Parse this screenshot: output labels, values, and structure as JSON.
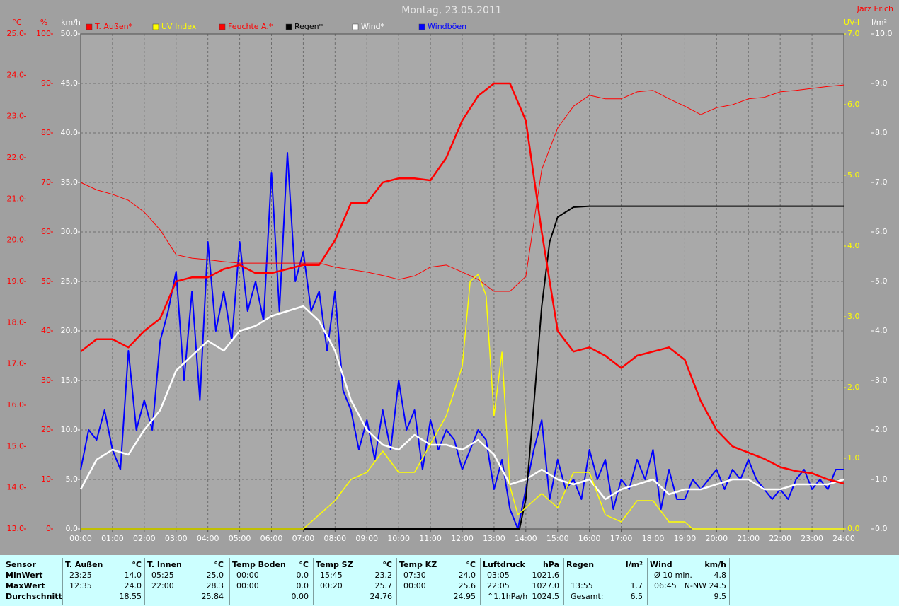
{
  "chart_data": {
    "type": "line",
    "title": "Montag, 23.05.2011",
    "author": "Jarz Erich",
    "grid": true,
    "grid_axis": "kmh",
    "legend": "top",
    "xlim": [
      0,
      24
    ],
    "xticks": [
      {
        "value": 0,
        "label": "00:00"
      },
      {
        "value": 1,
        "label": "01:00"
      },
      {
        "value": 2,
        "label": "02:00"
      },
      {
        "value": 3,
        "label": "03:00"
      },
      {
        "value": 4,
        "label": "04:00"
      },
      {
        "value": 5,
        "label": "05:00"
      },
      {
        "value": 6,
        "label": "06:00"
      },
      {
        "value": 7,
        "label": "07:00"
      },
      {
        "value": 8,
        "label": "08:00"
      },
      {
        "value": 9,
        "label": "09:00"
      },
      {
        "value": 10,
        "label": "10:00"
      },
      {
        "value": 11,
        "label": "11:00"
      },
      {
        "value": 12,
        "label": "12:00"
      },
      {
        "value": 13,
        "label": "13:00"
      },
      {
        "value": 14,
        "label": "14:00"
      },
      {
        "value": 15,
        "label": "15:00"
      },
      {
        "value": 16,
        "label": "16:00"
      },
      {
        "value": 17,
        "label": "17:00"
      },
      {
        "value": 18,
        "label": "18:00"
      },
      {
        "value": 19,
        "label": "19:00"
      },
      {
        "value": 20,
        "label": "20:00"
      },
      {
        "value": 21,
        "label": "21:00"
      },
      {
        "value": 22,
        "label": "22:00"
      },
      {
        "value": 23,
        "label": "23:00"
      },
      {
        "value": 24,
        "label": "24:00"
      }
    ],
    "axes": [
      {
        "id": "temp",
        "label": "°C",
        "side": "left",
        "color": "#ff0000",
        "lim": [
          13,
          25
        ],
        "ticks": [
          {
            "value": 13,
            "label": "13.0"
          },
          {
            "value": 14,
            "label": "14.0"
          },
          {
            "value": 15,
            "label": "15.0"
          },
          {
            "value": 16,
            "label": "16.0"
          },
          {
            "value": 17,
            "label": "17.0"
          },
          {
            "value": 18,
            "label": "18.0"
          },
          {
            "value": 19,
            "label": "19.0"
          },
          {
            "value": 20,
            "label": "20.0"
          },
          {
            "value": 21,
            "label": "21.0"
          },
          {
            "value": 22,
            "label": "22.0"
          },
          {
            "value": 23,
            "label": "23.0"
          },
          {
            "value": 24,
            "label": "24.0"
          },
          {
            "value": 25,
            "label": "25.0"
          }
        ]
      },
      {
        "id": "pct",
        "label": "%",
        "side": "left",
        "color": "#ff0000",
        "lim": [
          0,
          100
        ],
        "ticks": [
          0,
          10,
          20,
          30,
          40,
          50,
          60,
          70,
          80,
          90,
          100
        ]
      },
      {
        "id": "kmh",
        "label": "km/h",
        "side": "left",
        "color": "#ffffff",
        "lim": [
          0,
          50
        ],
        "ticks": [
          {
            "value": 0,
            "label": "0.0"
          },
          {
            "value": 5,
            "label": "5.0"
          },
          {
            "value": 10,
            "label": "10.0"
          },
          {
            "value": 15,
            "label": "15.0"
          },
          {
            "value": 20,
            "label": "20.0"
          },
          {
            "value": 25,
            "label": "25.0"
          },
          {
            "value": 30,
            "label": "30.0"
          },
          {
            "value": 35,
            "label": "35.0"
          },
          {
            "value": 40,
            "label": "40.0"
          },
          {
            "value": 45,
            "label": "45.0"
          },
          {
            "value": 50,
            "label": "50.0"
          }
        ]
      },
      {
        "id": "uv",
        "label": "UV-I",
        "side": "right",
        "color": "#ffff00",
        "lim": [
          0,
          7
        ],
        "ticks": [
          {
            "value": 0,
            "label": "0.0"
          },
          {
            "value": 1,
            "label": "1.0"
          },
          {
            "value": 2,
            "label": "2.0"
          },
          {
            "value": 3,
            "label": "3.0"
          },
          {
            "value": 4,
            "label": "4.0"
          },
          {
            "value": 5,
            "label": "5.0"
          },
          {
            "value": 6,
            "label": "6.0"
          },
          {
            "value": 7,
            "label": "7.0"
          }
        ]
      },
      {
        "id": "rain",
        "label": "l/m²",
        "side": "right",
        "color": "#ffffff",
        "lim": [
          0,
          10
        ],
        "ticks": [
          {
            "value": 0,
            "label": "0.0"
          },
          {
            "value": 1,
            "label": "1.0"
          },
          {
            "value": 2,
            "label": "2.0"
          },
          {
            "value": 3,
            "label": "3.0"
          },
          {
            "value": 4,
            "label": "4.0"
          },
          {
            "value": 5,
            "label": "5.0"
          },
          {
            "value": 6,
            "label": "6.0"
          },
          {
            "value": 7,
            "label": "7.0"
          },
          {
            "value": 8,
            "label": "8.0"
          },
          {
            "value": 9,
            "label": "9.0"
          },
          {
            "value": 10,
            "label": "10.0"
          }
        ]
      }
    ],
    "series": [
      {
        "name": "T. Außen*",
        "color": "#ff0000",
        "axis": "temp",
        "line_width": 2.5,
        "x": [
          0,
          0.5,
          1,
          1.5,
          2,
          2.5,
          3,
          3.5,
          4,
          4.5,
          5,
          5.5,
          6,
          6.5,
          7,
          7.5,
          8,
          8.5,
          9,
          9.5,
          10,
          10.5,
          11,
          11.5,
          12,
          12.5,
          13,
          13.5,
          14,
          14.5,
          15,
          15.5,
          16,
          16.5,
          17,
          17.5,
          18,
          18.5,
          19,
          19.5,
          20,
          20.5,
          21,
          21.5,
          22,
          22.5,
          23,
          23.5,
          24
        ],
        "values": [
          17.3,
          17.6,
          17.6,
          17.4,
          17.8,
          18.1,
          19.0,
          19.1,
          19.1,
          19.3,
          19.4,
          19.2,
          19.2,
          19.3,
          19.4,
          19.4,
          20.0,
          20.9,
          20.9,
          21.4,
          21.5,
          21.5,
          21.45,
          22.0,
          22.9,
          23.5,
          23.8,
          23.8,
          22.9,
          20.2,
          17.8,
          17.3,
          17.4,
          17.2,
          16.9,
          17.2,
          17.3,
          17.4,
          17.1,
          16.1,
          15.4,
          15.0,
          14.85,
          14.7,
          14.5,
          14.4,
          14.35,
          14.2,
          14.1
        ]
      },
      {
        "name": "UV Index",
        "color": "#ffff00",
        "axis": "uv",
        "line_width": 1.5,
        "x": [
          0,
          7,
          7.25,
          8,
          8.5,
          9,
          9.5,
          10,
          10.5,
          11,
          11.5,
          12,
          12.25,
          12.5,
          12.75,
          13,
          13.25,
          13.5,
          13.75,
          14,
          14.5,
          15,
          15.5,
          16,
          16.5,
          17,
          17.5,
          18,
          18.5,
          19,
          19.25,
          24
        ],
        "values": [
          0,
          0,
          0.1,
          0.4,
          0.7,
          0.8,
          1.1,
          0.8,
          0.8,
          1.2,
          1.6,
          2.3,
          3.5,
          3.6,
          3.3,
          1.6,
          2.5,
          0.6,
          0.2,
          0.3,
          0.5,
          0.3,
          0.8,
          0.8,
          0.2,
          0.1,
          0.4,
          0.4,
          0.1,
          0.1,
          0,
          0
        ]
      },
      {
        "name": "Feuchte A.*",
        "color": "#ff0000",
        "axis": "pct",
        "line_width": 1,
        "x": [
          0,
          0.5,
          1,
          1.5,
          2,
          2.5,
          3,
          3.5,
          4,
          4.5,
          5,
          5.5,
          6,
          6.5,
          7,
          7.5,
          8,
          8.5,
          9,
          9.5,
          10,
          10.5,
          11,
          11.5,
          12,
          12.5,
          13,
          13.5,
          14,
          14.5,
          15,
          15.5,
          16,
          16.5,
          17,
          17.5,
          18,
          18.5,
          19,
          19.5,
          20,
          20.5,
          21,
          21.5,
          22,
          22.5,
          23,
          23.5,
          24
        ],
        "values": [
          70,
          68.5,
          67.6,
          66.4,
          64,
          60.4,
          55.4,
          54.7,
          54.4,
          54,
          53.7,
          53.7,
          53.7,
          53.7,
          53.7,
          53.7,
          52.9,
          52.4,
          51.9,
          51.2,
          50.4,
          51.1,
          52.9,
          53.3,
          51.9,
          50.4,
          48,
          48,
          51,
          72.6,
          81,
          85.4,
          87.6,
          86.9,
          86.9,
          88.3,
          88.6,
          86.9,
          85.4,
          83.7,
          85.1,
          85.7,
          86.9,
          87.2,
          88.3,
          88.6,
          89,
          89.4,
          89.7
        ]
      },
      {
        "name": "Regen*",
        "color": "#000000",
        "axis": "rain",
        "line_width": 2,
        "x": [
          0,
          13.8,
          14,
          14.25,
          14.5,
          14.75,
          15,
          15.5,
          16,
          24
        ],
        "values": [
          0,
          0,
          0.6,
          2.5,
          4.5,
          5.8,
          6.3,
          6.5,
          6.52,
          6.52
        ]
      },
      {
        "name": "Wind*",
        "color": "#ffffff",
        "axis": "kmh",
        "line_width": 2.5,
        "x": [
          0,
          0.5,
          1,
          1.5,
          2,
          2.5,
          3,
          3.5,
          4,
          4.5,
          5,
          5.5,
          6,
          6.5,
          7,
          7.5,
          8,
          8.5,
          9,
          9.5,
          10,
          10.5,
          11,
          11.5,
          12,
          12.5,
          13,
          13.5,
          14,
          14.5,
          15,
          15.5,
          16,
          16.5,
          17,
          17.5,
          18,
          18.5,
          19,
          19.5,
          20,
          20.5,
          21,
          21.5,
          22,
          22.5,
          23,
          23.5,
          24
        ],
        "values": [
          4,
          7,
          8,
          7.5,
          10,
          12,
          16,
          17.5,
          19,
          18,
          20,
          20.5,
          21.5,
          22,
          22.5,
          21,
          18,
          13,
          10,
          8.5,
          8,
          9.5,
          8.5,
          8.5,
          8,
          9,
          7.5,
          4.5,
          5,
          6,
          5,
          4.5,
          5,
          3,
          4,
          4.5,
          5,
          3.5,
          4,
          4,
          4.5,
          5,
          5,
          4,
          4,
          4.5,
          4.5,
          4.5,
          5
        ]
      },
      {
        "name": "Windböen",
        "color": "#0000ff",
        "axis": "kmh",
        "line_width": 2,
        "x": [
          0,
          0.25,
          0.5,
          0.75,
          1,
          1.25,
          1.5,
          1.75,
          2,
          2.25,
          2.5,
          2.75,
          3,
          3.25,
          3.5,
          3.75,
          4,
          4.25,
          4.5,
          4.75,
          5,
          5.25,
          5.5,
          5.75,
          6,
          6.25,
          6.5,
          6.75,
          7,
          7.25,
          7.5,
          7.75,
          8,
          8.25,
          8.5,
          8.75,
          9,
          9.25,
          9.5,
          9.75,
          10,
          10.25,
          10.5,
          10.75,
          11,
          11.25,
          11.5,
          11.75,
          12,
          12.25,
          12.5,
          12.75,
          13,
          13.25,
          13.5,
          13.75,
          14,
          14.25,
          14.5,
          14.75,
          15,
          15.25,
          15.5,
          15.75,
          16,
          16.25,
          16.5,
          16.75,
          17,
          17.25,
          17.5,
          17.75,
          18,
          18.25,
          18.5,
          18.75,
          19,
          19.25,
          19.5,
          19.75,
          20,
          20.25,
          20.5,
          20.75,
          21,
          21.25,
          21.5,
          21.75,
          22,
          22.25,
          22.5,
          22.75,
          23,
          23.25,
          23.5,
          23.75,
          24
        ],
        "values": [
          6,
          10,
          9,
          12,
          8,
          6,
          18,
          10,
          13,
          10,
          19,
          22,
          26,
          15,
          24,
          13,
          29,
          20,
          24,
          19,
          29,
          22,
          25,
          21,
          36,
          22,
          38,
          25,
          28,
          22,
          24,
          18,
          24,
          14,
          12,
          8,
          11,
          7,
          12,
          8,
          15,
          10,
          12,
          6,
          11,
          8,
          10,
          9,
          6,
          8,
          10,
          9,
          4,
          7,
          2,
          0,
          4,
          8,
          11,
          3,
          7,
          4,
          5,
          3,
          8,
          5,
          7,
          2,
          5,
          4,
          7,
          5,
          8,
          2,
          6,
          3,
          3,
          5,
          4,
          5,
          6,
          4,
          6,
          5,
          7,
          5,
          4,
          3,
          4,
          3,
          5,
          6,
          4,
          5,
          4,
          6,
          6
        ]
      }
    ]
  },
  "stats_table": {
    "sensor_column": [
      "Sensor",
      "MinWert",
      "MaxWert",
      "Durchschnitt"
    ],
    "groups": [
      {
        "title": "T. Außen",
        "unit": "°C",
        "rows": [
          [
            "23:25",
            "14.0"
          ],
          [
            "12:35",
            "24.0"
          ],
          [
            "18.55"
          ]
        ]
      },
      {
        "title": "T. Innen",
        "unit": "°C",
        "rows": [
          [
            "05:25",
            "25.0"
          ],
          [
            "22:00",
            "28.3"
          ],
          [
            "25.84"
          ]
        ]
      },
      {
        "title": "Temp Boden",
        "unit": "°C",
        "rows": [
          [
            "00:00",
            "0.0"
          ],
          [
            "00:00",
            "0.0"
          ],
          [
            "0.00"
          ]
        ]
      },
      {
        "title": "Temp SZ",
        "unit": "°C",
        "rows": [
          [
            "15:45",
            "23.2"
          ],
          [
            "00:20",
            "25.7"
          ],
          [
            "24.76"
          ]
        ]
      },
      {
        "title": "Temp KZ",
        "unit": "°C",
        "rows": [
          [
            "07:30",
            "24.0"
          ],
          [
            "00:00",
            "25.6"
          ],
          [
            "24.95"
          ]
        ]
      },
      {
        "title": "Luftdruck",
        "unit": "hPa",
        "rows": [
          [
            "03:05",
            "1021.6"
          ],
          [
            "22:05",
            "1027.0"
          ],
          [
            "^1.1hPa/h",
            "1024.5"
          ]
        ]
      },
      {
        "title": "Regen",
        "unit": "l/m²",
        "rows": [
          [],
          [
            "13:55",
            "1.7"
          ],
          [
            "Gesamt:",
            "6.5"
          ]
        ]
      },
      {
        "title": "Wind",
        "unit": "km/h",
        "rows": [
          [
            "Ø 10 min.",
            "4.8"
          ],
          [
            "06:45",
            "N-NW 24.5"
          ],
          [
            "9.5"
          ]
        ]
      }
    ]
  }
}
